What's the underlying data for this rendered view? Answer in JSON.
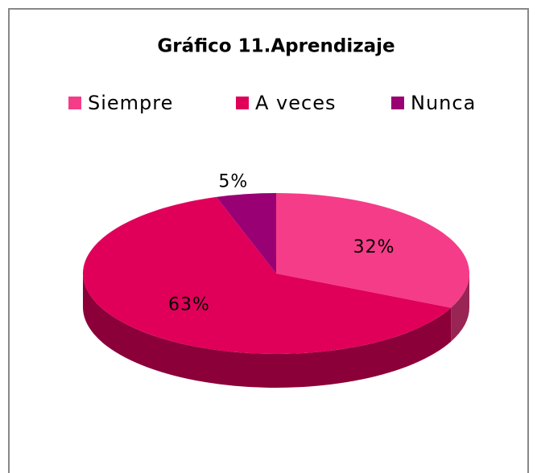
{
  "chart_data": {
    "type": "pie",
    "title": "Gráfico 11.Aprendizaje",
    "categories": [
      "Siempre",
      "A veces",
      "Nunca"
    ],
    "values": [
      32,
      63,
      5
    ],
    "value_labels": [
      "32%",
      "63%",
      "5%"
    ],
    "colors": [
      "#f53c88",
      "#e0005a",
      "#990073"
    ],
    "legend": "top"
  }
}
